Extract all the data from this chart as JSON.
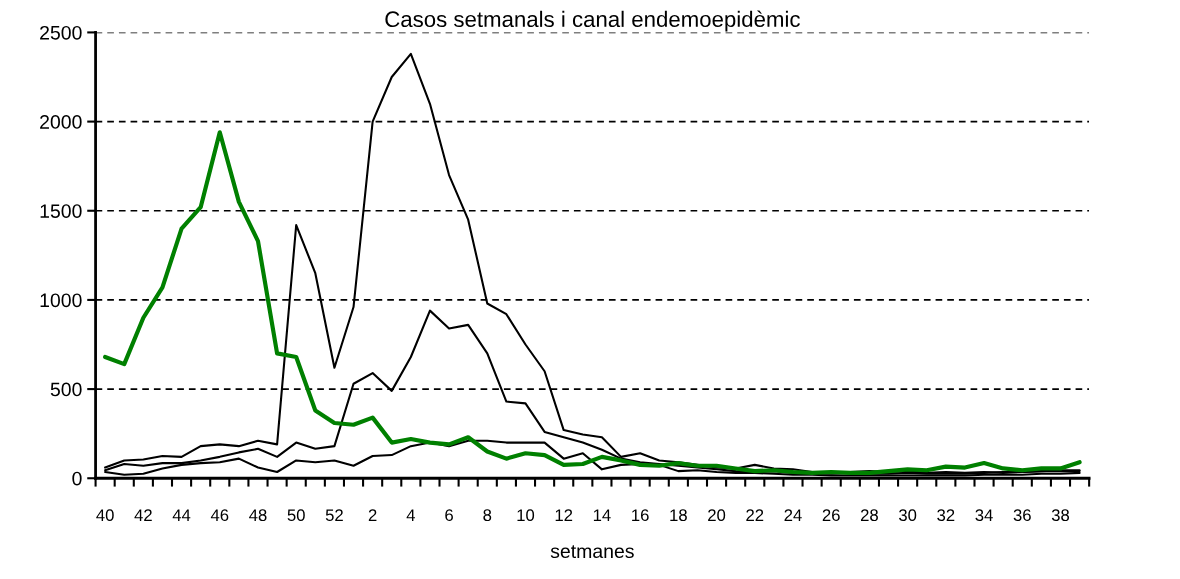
{
  "chart_data": {
    "type": "line",
    "title": "Casos setmanals i canal endemoepidèmic",
    "xlabel": "setmanes",
    "categories": [
      "40",
      null,
      "42",
      null,
      "44",
      null,
      "46",
      null,
      "48",
      null,
      "50",
      null,
      "52",
      null,
      "2",
      null,
      "4",
      null,
      "6",
      null,
      "8",
      null,
      "10",
      null,
      "12",
      null,
      "14",
      null,
      "16",
      null,
      "18",
      null,
      "20",
      null,
      "22",
      null,
      "24",
      null,
      "26",
      null,
      "28",
      null,
      "30",
      null,
      "32",
      null,
      "34",
      null,
      "36",
      null,
      "38",
      null
    ],
    "series": [
      {
        "color": "#000000",
        "values": [
          60,
          100,
          105,
          125,
          120,
          180,
          190,
          180,
          210,
          190,
          1420,
          1150,
          620,
          960,
          2000,
          2250,
          2380,
          2100,
          1700,
          1450,
          980,
          920,
          750,
          600,
          270,
          245,
          230,
          120,
          140,
          100,
          90,
          75,
          60,
          55,
          75,
          55,
          50,
          35,
          30,
          35,
          40,
          35,
          40,
          30,
          35,
          30,
          35,
          30,
          35,
          40,
          45,
          45
        ]
      },
      {
        "color": "#000000",
        "values": [
          45,
          80,
          70,
          85,
          85,
          100,
          120,
          145,
          165,
          120,
          200,
          165,
          180,
          530,
          590,
          490,
          680,
          940,
          840,
          860,
          700,
          430,
          420,
          260,
          230,
          200,
          160,
          110,
          90,
          80,
          70,
          60,
          50,
          40,
          35,
          40,
          30,
          30,
          25,
          30,
          25,
          25,
          30,
          25,
          25,
          25,
          30,
          35,
          35,
          40,
          40,
          40
        ]
      },
      {
        "color": "#000000",
        "values": [
          35,
          20,
          25,
          55,
          75,
          85,
          90,
          110,
          60,
          35,
          100,
          90,
          100,
          70,
          125,
          130,
          180,
          200,
          180,
          210,
          210,
          200,
          200,
          200,
          110,
          140,
          50,
          75,
          80,
          75,
          40,
          45,
          35,
          30,
          30,
          25,
          20,
          20,
          15,
          15,
          15,
          15,
          15,
          15,
          15,
          15,
          20,
          20,
          20,
          25,
          25,
          30
        ]
      },
      {
        "color": "#008000",
        "values": [
          680,
          640,
          900,
          1070,
          1400,
          1520,
          1940,
          1550,
          1330,
          700,
          680,
          380,
          310,
          300,
          340,
          200,
          220,
          200,
          190,
          230,
          150,
          110,
          140,
          130,
          75,
          80,
          120,
          100,
          75,
          70,
          85,
          70,
          70,
          55,
          40,
          45,
          35,
          30,
          35,
          30,
          30,
          40,
          50,
          45,
          65,
          60,
          85,
          55,
          45,
          55,
          55,
          90
        ]
      }
    ],
    "ylim": [
      0,
      2500
    ],
    "yticks": [
      0,
      500,
      1000,
      1500,
      2000,
      2500
    ],
    "grid": "y",
    "line_style": "solid",
    "marker": "none"
  }
}
